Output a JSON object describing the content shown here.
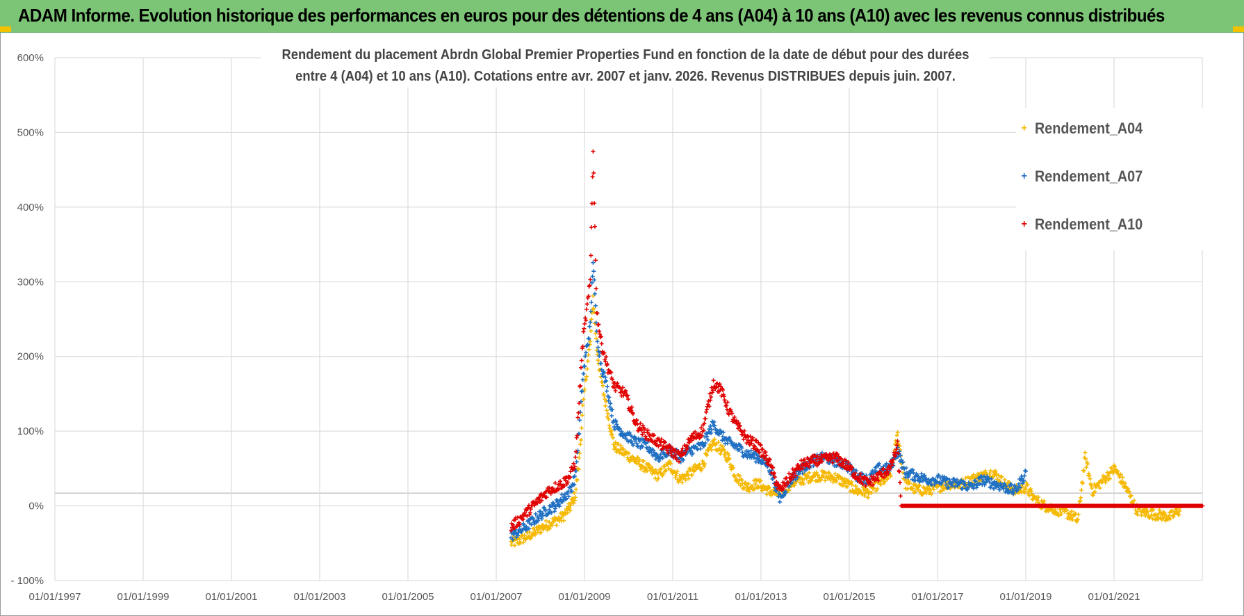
{
  "banner": {
    "title": "ADAM Informe. Evolution historique des performances en euros pour des détentions de 4 ans (A04) à 10 ans (A10) avec les revenus connus distribués"
  },
  "chart_data": {
    "type": "scatter",
    "title_lines": [
      "Rendement du placement Abrdn Global Premier Properties Fund en fonction de la date de début pour des durées",
      "entre 4 (A04) et 10 ans (A10).  Cotations entre avr. 2007 et janv. 2026. Revenus DISTRIBUES depuis juin. 2007."
    ],
    "x_ticks": [
      "01/01/1997",
      "01/01/1999",
      "01/01/2001",
      "01/01/2003",
      "01/01/2005",
      "01/01/2007",
      "01/01/2009",
      "01/01/2011",
      "01/01/2013",
      "01/01/2015",
      "01/01/2017",
      "01/01/2019",
      "01/01/2021"
    ],
    "xlim": [
      "1997-01-01",
      "2023-01-01"
    ],
    "y_ticks": [
      "600%",
      "500%",
      "400%",
      "300%",
      "200%",
      "100%",
      "0%",
      "- 100%"
    ],
    "ylim": [
      -100,
      600
    ],
    "legend_position": "top-right",
    "grid": true,
    "series": [
      {
        "name": "Rendement_A04",
        "color": "#f5b800",
        "points": [
          [
            "2007-05-01",
            -50
          ],
          [
            "2007-07-01",
            -47
          ],
          [
            "2007-09-01",
            -42
          ],
          [
            "2007-11-01",
            -37
          ],
          [
            "2008-01-01",
            -30
          ],
          [
            "2008-03-01",
            -25
          ],
          [
            "2008-05-01",
            -20
          ],
          [
            "2008-07-01",
            -15
          ],
          [
            "2008-09-01",
            -2
          ],
          [
            "2008-10-15",
            15
          ],
          [
            "2008-11-15",
            60
          ],
          [
            "2008-12-15",
            130
          ],
          [
            "2009-01-15",
            180
          ],
          [
            "2009-02-15",
            220
          ],
          [
            "2009-03-10",
            280
          ],
          [
            "2009-04-10",
            210
          ],
          [
            "2009-05-15",
            170
          ],
          [
            "2009-07-01",
            130
          ],
          [
            "2009-09-01",
            80
          ],
          [
            "2009-12-01",
            70
          ],
          [
            "2010-03-01",
            60
          ],
          [
            "2010-06-01",
            50
          ],
          [
            "2010-09-01",
            40
          ],
          [
            "2010-12-01",
            55
          ],
          [
            "2011-03-01",
            35
          ],
          [
            "2011-06-01",
            45
          ],
          [
            "2011-09-01",
            55
          ],
          [
            "2011-12-01",
            85
          ],
          [
            "2012-02-01",
            75
          ],
          [
            "2012-04-01",
            65
          ],
          [
            "2012-06-01",
            40
          ],
          [
            "2012-09-01",
            25
          ],
          [
            "2012-12-01",
            30
          ],
          [
            "2013-03-01",
            20
          ],
          [
            "2013-06-01",
            15
          ],
          [
            "2013-09-01",
            30
          ],
          [
            "2013-12-01",
            35
          ],
          [
            "2014-03-01",
            40
          ],
          [
            "2014-06-01",
            40
          ],
          [
            "2014-09-01",
            38
          ],
          [
            "2014-12-01",
            30
          ],
          [
            "2015-03-01",
            20
          ],
          [
            "2015-06-01",
            18
          ],
          [
            "2015-09-01",
            30
          ],
          [
            "2015-12-01",
            40
          ],
          [
            "2016-02-01",
            95
          ],
          [
            "2016-04-01",
            30
          ],
          [
            "2016-07-01",
            22
          ],
          [
            "2016-10-01",
            20
          ],
          [
            "2017-01-01",
            25
          ],
          [
            "2017-04-01",
            30
          ],
          [
            "2017-07-01",
            28
          ],
          [
            "2017-10-01",
            35
          ],
          [
            "2018-01-01",
            40
          ],
          [
            "2018-04-01",
            45
          ],
          [
            "2018-07-01",
            30
          ],
          [
            "2018-10-01",
            20
          ],
          [
            "2019-01-01",
            25
          ],
          [
            "2019-03-01",
            10
          ],
          [
            "2019-06-01",
            0
          ],
          [
            "2019-09-01",
            -5
          ],
          [
            "2019-12-01",
            -10
          ],
          [
            "2020-02-01",
            -15
          ],
          [
            "2020-03-01",
            -20
          ],
          [
            "2020-05-01",
            65
          ],
          [
            "2020-07-01",
            20
          ],
          [
            "2020-10-01",
            35
          ],
          [
            "2021-01-01",
            50
          ],
          [
            "2021-04-01",
            25
          ],
          [
            "2021-07-01",
            -5
          ],
          [
            "2021-10-01",
            -10
          ],
          [
            "2022-01-01",
            -12
          ],
          [
            "2022-04-01",
            -15
          ],
          [
            "2022-07-01",
            -5
          ]
        ]
      },
      {
        "name": "Rendement_A07",
        "color": "#1f6fc2",
        "points": [
          [
            "2007-05-01",
            -40
          ],
          [
            "2007-07-01",
            -35
          ],
          [
            "2007-09-01",
            -28
          ],
          [
            "2007-11-01",
            -20
          ],
          [
            "2008-01-01",
            -12
          ],
          [
            "2008-03-01",
            -5
          ],
          [
            "2008-05-01",
            0
          ],
          [
            "2008-07-01",
            10
          ],
          [
            "2008-09-01",
            20
          ],
          [
            "2008-10-15",
            40
          ],
          [
            "2008-11-15",
            100
          ],
          [
            "2008-12-15",
            170
          ],
          [
            "2009-01-15",
            210
          ],
          [
            "2009-02-15",
            240
          ],
          [
            "2009-03-10",
            330
          ],
          [
            "2009-04-10",
            230
          ],
          [
            "2009-05-15",
            190
          ],
          [
            "2009-07-01",
            160
          ],
          [
            "2009-09-01",
            110
          ],
          [
            "2009-12-01",
            95
          ],
          [
            "2010-03-01",
            85
          ],
          [
            "2010-06-01",
            80
          ],
          [
            "2010-09-01",
            65
          ],
          [
            "2010-12-01",
            75
          ],
          [
            "2011-03-01",
            65
          ],
          [
            "2011-06-01",
            75
          ],
          [
            "2011-09-01",
            80
          ],
          [
            "2011-12-01",
            110
          ],
          [
            "2012-02-01",
            95
          ],
          [
            "2012-04-01",
            85
          ],
          [
            "2012-06-01",
            80
          ],
          [
            "2012-09-01",
            70
          ],
          [
            "2012-12-01",
            65
          ],
          [
            "2013-03-01",
            55
          ],
          [
            "2013-06-01",
            10
          ],
          [
            "2013-09-01",
            35
          ],
          [
            "2013-12-01",
            50
          ],
          [
            "2014-03-01",
            60
          ],
          [
            "2014-06-01",
            65
          ],
          [
            "2014-09-01",
            60
          ],
          [
            "2014-12-01",
            55
          ],
          [
            "2015-03-01",
            40
          ],
          [
            "2015-06-01",
            35
          ],
          [
            "2015-09-01",
            50
          ],
          [
            "2015-12-01",
            50
          ],
          [
            "2016-02-01",
            75
          ],
          [
            "2016-04-01",
            45
          ],
          [
            "2016-07-01",
            40
          ],
          [
            "2016-10-01",
            35
          ],
          [
            "2017-01-01",
            35
          ],
          [
            "2017-04-01",
            30
          ],
          [
            "2017-07-01",
            30
          ],
          [
            "2017-10-01",
            25
          ],
          [
            "2018-01-01",
            35
          ],
          [
            "2018-04-01",
            30
          ],
          [
            "2018-07-01",
            25
          ],
          [
            "2018-10-01",
            20
          ],
          [
            "2019-01-01",
            45
          ]
        ]
      },
      {
        "name": "Rendement_A10",
        "color": "#e00000",
        "points": [
          [
            "2007-05-01",
            -28
          ],
          [
            "2007-07-01",
            -20
          ],
          [
            "2007-09-01",
            -10
          ],
          [
            "2007-11-01",
            0
          ],
          [
            "2008-01-01",
            10
          ],
          [
            "2008-03-01",
            20
          ],
          [
            "2008-05-01",
            25
          ],
          [
            "2008-07-01",
            30
          ],
          [
            "2008-09-01",
            40
          ],
          [
            "2008-10-15",
            60
          ],
          [
            "2008-11-15",
            140
          ],
          [
            "2008-12-15",
            220
          ],
          [
            "2009-01-15",
            260
          ],
          [
            "2009-02-15",
            300
          ],
          [
            "2009-03-10",
            480
          ],
          [
            "2009-04-10",
            260
          ],
          [
            "2009-05-15",
            220
          ],
          [
            "2009-07-01",
            190
          ],
          [
            "2009-09-01",
            160
          ],
          [
            "2009-12-01",
            150
          ],
          [
            "2010-03-01",
            110
          ],
          [
            "2010-06-01",
            95
          ],
          [
            "2010-09-01",
            85
          ],
          [
            "2010-12-01",
            75
          ],
          [
            "2011-03-01",
            65
          ],
          [
            "2011-06-01",
            90
          ],
          [
            "2011-09-01",
            100
          ],
          [
            "2011-12-01",
            165
          ],
          [
            "2012-02-01",
            155
          ],
          [
            "2012-04-01",
            130
          ],
          [
            "2012-06-01",
            110
          ],
          [
            "2012-09-01",
            90
          ],
          [
            "2012-12-01",
            80
          ],
          [
            "2013-03-01",
            60
          ],
          [
            "2013-06-01",
            20
          ],
          [
            "2013-09-01",
            40
          ],
          [
            "2013-12-01",
            55
          ],
          [
            "2014-03-01",
            60
          ],
          [
            "2014-06-01",
            62
          ],
          [
            "2014-09-01",
            65
          ],
          [
            "2014-12-01",
            55
          ],
          [
            "2015-03-01",
            40
          ],
          [
            "2015-06-01",
            30
          ],
          [
            "2015-09-01",
            40
          ],
          [
            "2015-12-01",
            50
          ],
          [
            "2016-02-01",
            80
          ],
          [
            "2016-03-01",
            0
          ],
          [
            "2017-01-01",
            0
          ],
          [
            "2018-01-01",
            0
          ],
          [
            "2019-01-01",
            0
          ],
          [
            "2020-01-01",
            0
          ],
          [
            "2021-01-01",
            0
          ],
          [
            "2022-01-01",
            0
          ],
          [
            "2023-01-01",
            0
          ]
        ]
      }
    ]
  }
}
